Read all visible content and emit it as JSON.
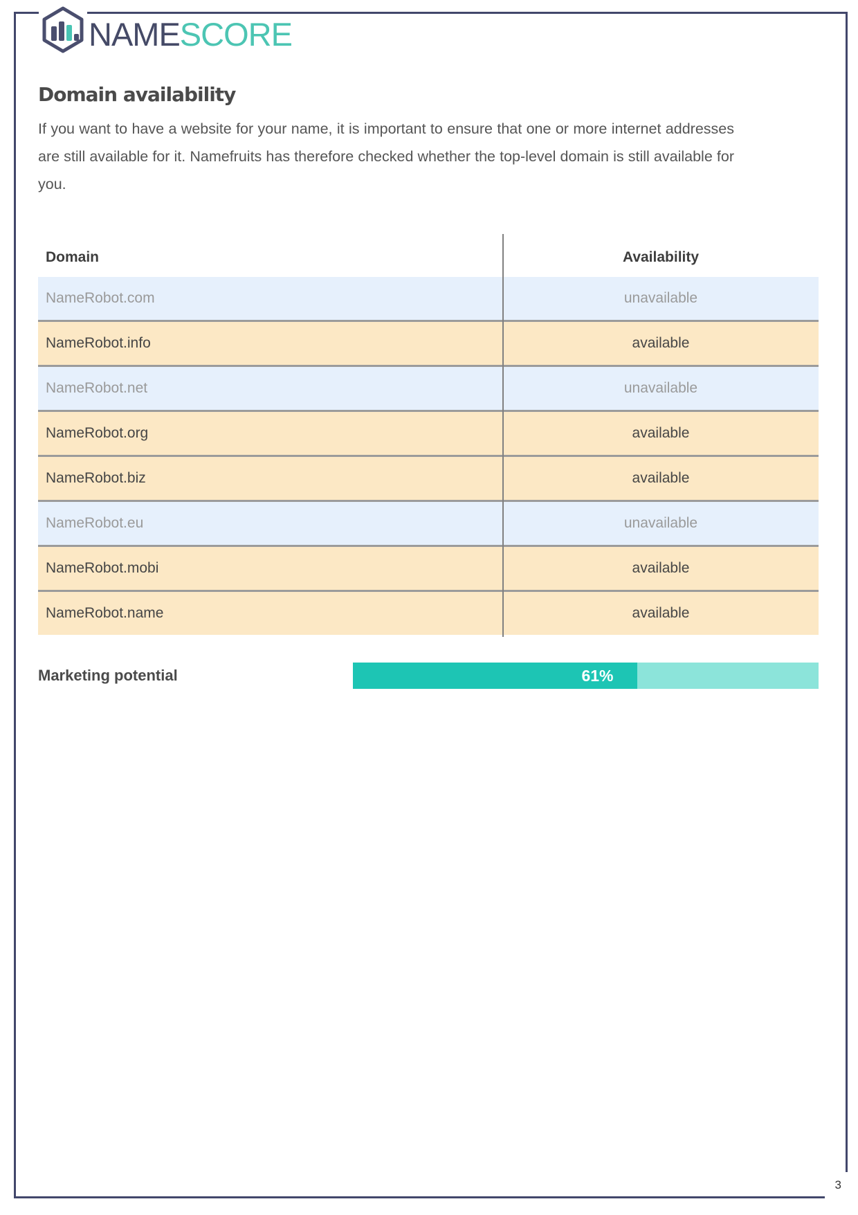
{
  "logo": {
    "name_part": "NAME",
    "score_part": "SCORE"
  },
  "heading": "Domain availability",
  "intro": "If you want to have a website for your name, it is important to ensure that one or more internet addresses are still available for it. Namefruits has therefore checked whether the top-level domain is still available for you.",
  "table": {
    "columns": [
      "Domain",
      "Availability"
    ],
    "rows": [
      {
        "domain": "NameRobot.com",
        "availability": "unavailable"
      },
      {
        "domain": "NameRobot.info",
        "availability": "available"
      },
      {
        "domain": "NameRobot.net",
        "availability": "unavailable"
      },
      {
        "domain": "NameRobot.org",
        "availability": "available"
      },
      {
        "domain": "NameRobot.biz",
        "availability": "available"
      },
      {
        "domain": "NameRobot.eu",
        "availability": "unavailable"
      },
      {
        "domain": "NameRobot.mobi",
        "availability": "available"
      },
      {
        "domain": "NameRobot.name",
        "availability": "available"
      }
    ]
  },
  "marketing": {
    "label": "Marketing potential",
    "value_label": "61%",
    "percent": 61
  },
  "page_number": "3",
  "colors": {
    "frame": "#42476b",
    "logo_dark": "#454a67",
    "logo_teal": "#4cc5b3",
    "row_unavailable_bg": "#e6f0fc",
    "row_available_bg": "#fce8c5",
    "bar_fill": "#1dc5b4",
    "bar_track": "#8ce4da"
  }
}
